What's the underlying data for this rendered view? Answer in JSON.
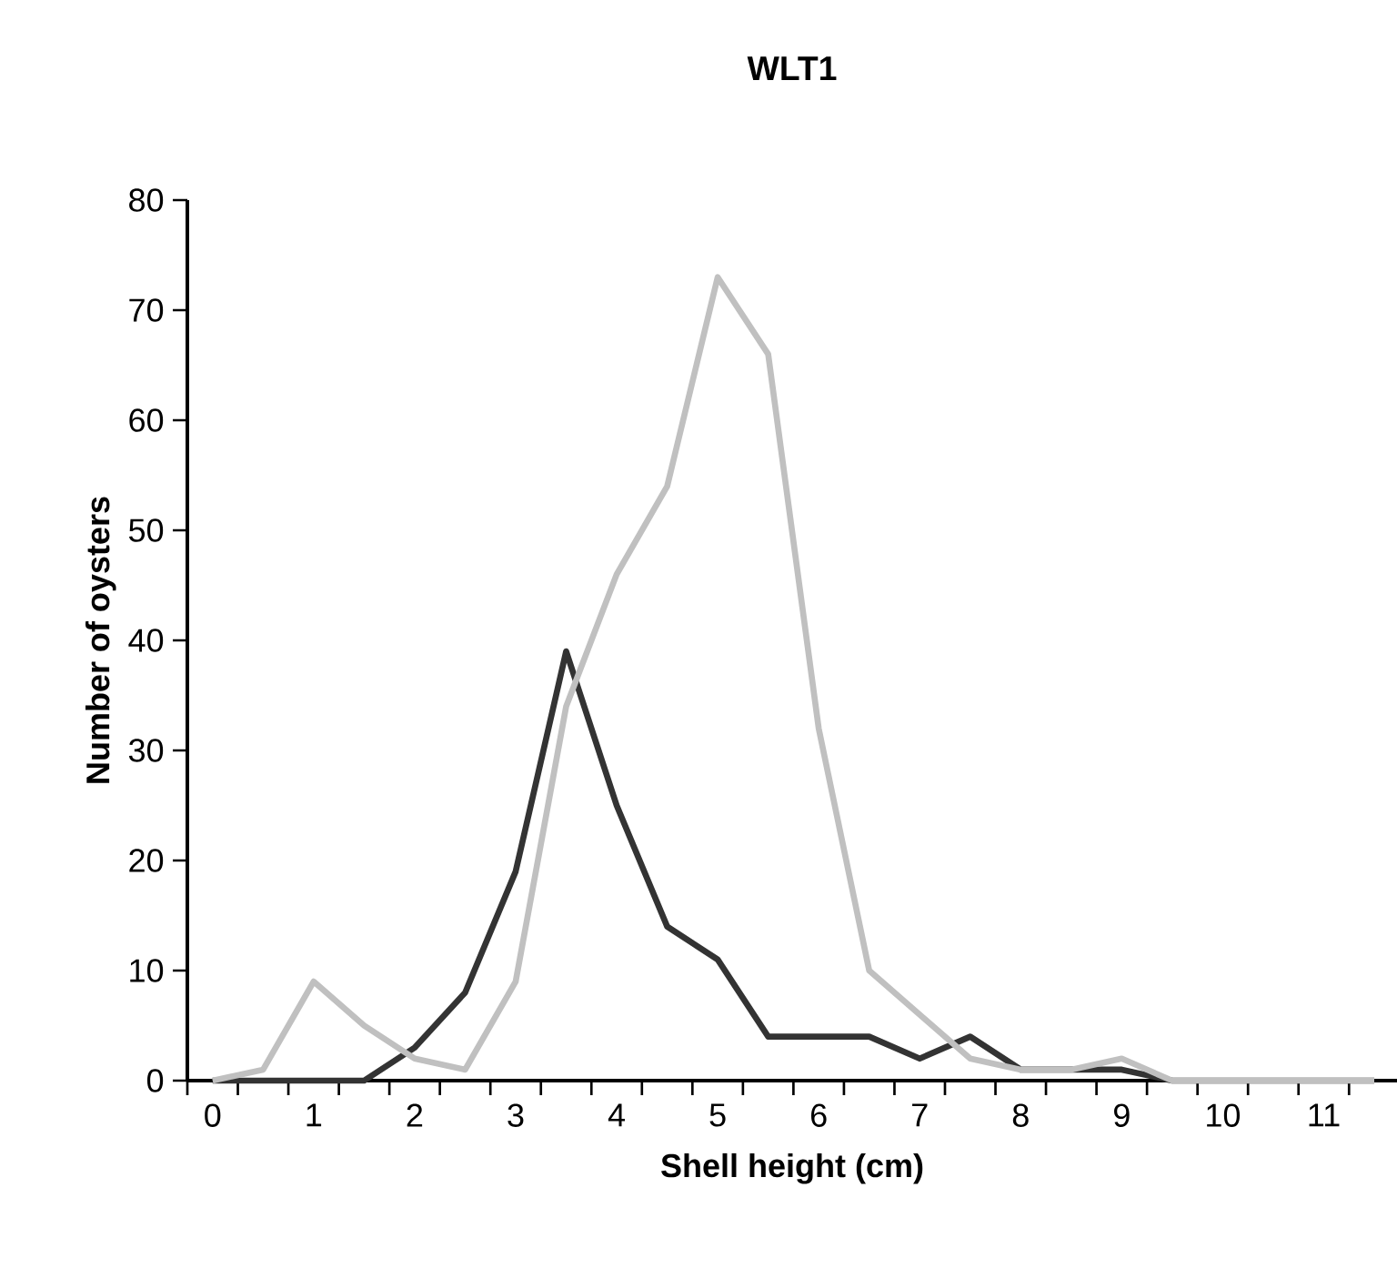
{
  "chart_data": {
    "type": "line",
    "title": "WLT1",
    "xlabel": "Shell height (cm)",
    "ylabel": "Number of oysters",
    "categories": [
      "0",
      null,
      "1",
      null,
      "2",
      null,
      "3",
      null,
      "4",
      null,
      "5",
      null,
      "6",
      null,
      "7",
      null,
      "8",
      null,
      "9",
      null,
      "10",
      null,
      "11",
      null
    ],
    "series": [
      {
        "color": "#333333",
        "values": [
          0,
          0,
          0,
          0,
          3,
          8,
          19,
          39,
          25,
          14,
          11,
          4,
          4,
          4,
          2,
          4,
          1,
          1,
          1,
          0,
          0,
          0,
          0,
          0
        ]
      },
      {
        "color": "#c0c0c0",
        "values": [
          0,
          1,
          9,
          5,
          2,
          1,
          9,
          34,
          46,
          54,
          73,
          66,
          32,
          10,
          6,
          2,
          1,
          1,
          2,
          0,
          0,
          0,
          0,
          0
        ]
      }
    ],
    "ylim": [
      0,
      80
    ],
    "yticks": [
      0,
      10,
      20,
      30,
      40,
      50,
      60,
      70,
      80
    ],
    "grid": false,
    "marker": "none",
    "line_style": "solid"
  }
}
